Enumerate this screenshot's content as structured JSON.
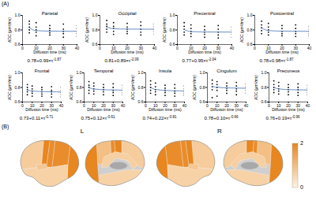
{
  "panel_labels": [
    "(A)",
    "(B)"
  ],
  "chart_data": [
    {
      "type": "scatter",
      "title": "Parietal",
      "xlabel": "Diffusion time (ms)",
      "ylabel": "ADC (μm²/ms)",
      "xlim": [
        0,
        40
      ],
      "xticks": [
        0,
        10,
        20,
        30,
        40
      ],
      "ylim": [
        0.6,
        1.0
      ],
      "yticks": [
        0.6,
        0.8,
        {
          "value": 1.0,
          "label": "1.0"
        }
      ],
      "x": [
        5,
        10,
        20,
        30,
        40
      ],
      "y_points": [
        [
          0.92,
          0.88,
          0.84,
          0.8,
          0.76
        ],
        [
          0.9,
          0.84,
          0.8,
          0.77,
          0.72
        ],
        [
          0.86,
          0.82,
          0.79,
          0.76,
          0.73
        ],
        [
          0.88,
          0.81,
          0.78,
          0.75,
          0.7
        ],
        [
          0.86,
          0.82,
          0.78,
          0.75,
          0.71
        ]
      ],
      "fit": {
        "color": "#3f6fb5",
        "x": [
          5,
          7.5,
          10,
          15,
          20,
          30,
          40
        ],
        "y": [
          0.829,
          0.803,
          0.793,
          0.786,
          0.784,
          0.782,
          0.781
        ]
      },
      "equation": "0.78+0.99×τ",
      "exponent": "-1.87"
    },
    {
      "type": "scatter",
      "title": "Occipital",
      "xlabel": "Diffusion time (ms)",
      "ylabel": "ADC (μm²/ms)",
      "xlim": [
        0,
        40
      ],
      "xticks": [
        0,
        10,
        20,
        30,
        40
      ],
      "ylim": [
        0.6,
        1.0
      ],
      "yticks": [
        0.6,
        0.8,
        {
          "value": 1.0,
          "label": "1.0"
        }
      ],
      "x": [
        5,
        10,
        20,
        30,
        40
      ],
      "y_points": [
        [
          0.93,
          0.88,
          0.85,
          0.81,
          0.77
        ],
        [
          0.9,
          0.85,
          0.82,
          0.78,
          0.74
        ],
        [
          0.89,
          0.84,
          0.81,
          0.78,
          0.75
        ],
        [
          0.91,
          0.86,
          0.81,
          0.77,
          0.73
        ],
        [
          0.88,
          0.84,
          0.81,
          0.78,
          0.74
        ]
      ],
      "fit": {
        "color": "#3f6fb5",
        "x": [
          5,
          7.5,
          10,
          15,
          20,
          30,
          40
        ],
        "y": [
          0.841,
          0.823,
          0.817,
          0.813,
          0.812,
          0.811,
          0.81
        ]
      },
      "equation": "0.81+0.89×τ",
      "exponent": "-2.09"
    },
    {
      "type": "scatter",
      "title": "Precentral",
      "xlabel": "Diffusion time (ms)",
      "ylabel": "ADC (μm²/ms)",
      "xlim": [
        0,
        40
      ],
      "xticks": [
        0,
        10,
        20,
        30,
        40
      ],
      "ylim": [
        0.6,
        1.0
      ],
      "yticks": [
        0.6,
        0.8,
        {
          "value": 1.0,
          "label": "1.0"
        }
      ],
      "x": [
        5,
        10,
        20,
        30,
        40
      ],
      "y_points": [
        [
          0.9,
          0.85,
          0.81,
          0.77,
          0.73
        ],
        [
          0.87,
          0.82,
          0.78,
          0.75,
          0.71
        ],
        [
          0.85,
          0.8,
          0.77,
          0.74,
          0.7
        ],
        [
          0.86,
          0.81,
          0.77,
          0.73,
          0.69
        ],
        [
          0.84,
          0.8,
          0.77,
          0.74,
          0.7
        ]
      ],
      "fit": {
        "color": "#3f6fb5",
        "x": [
          5,
          7.5,
          10,
          15,
          20,
          30,
          40
        ],
        "y": [
          0.806,
          0.786,
          0.779,
          0.774,
          0.772,
          0.771,
          0.77
        ]
      },
      "equation": "0.77+0.95×τ",
      "exponent": "-2.04"
    },
    {
      "type": "scatter",
      "title": "Postcentral",
      "xlabel": "Diffusion time (ms)",
      "ylabel": "ADC (μm²/ms)",
      "xlim": [
        0,
        40
      ],
      "xticks": [
        0,
        10,
        20,
        30,
        40
      ],
      "ylim": [
        0.6,
        1.0
      ],
      "yticks": [
        0.6,
        0.8,
        {
          "value": 1.0,
          "label": "1.0"
        }
      ],
      "x": [
        5,
        10,
        20,
        30,
        40
      ],
      "y_points": [
        [
          0.92,
          0.87,
          0.83,
          0.79,
          0.75
        ],
        [
          0.89,
          0.84,
          0.8,
          0.77,
          0.73
        ],
        [
          0.86,
          0.82,
          0.78,
          0.75,
          0.72
        ],
        [
          0.87,
          0.82,
          0.78,
          0.75,
          0.71
        ],
        [
          0.85,
          0.81,
          0.78,
          0.75,
          0.72
        ]
      ],
      "fit": {
        "color": "#3f6fb5",
        "x": [
          5,
          7.5,
          10,
          15,
          20,
          30,
          40
        ],
        "y": [
          0.828,
          0.803,
          0.793,
          0.786,
          0.784,
          0.782,
          0.781
        ]
      },
      "equation": "0.78+0.98×τ",
      "exponent": "-1.87"
    },
    {
      "type": "scatter",
      "title": "Frontal",
      "xlabel": "Diffusion time (ms)",
      "ylabel": "ADC (μm²/ms)",
      "xlim": [
        0,
        40
      ],
      "xticks": [
        0,
        10,
        20,
        30,
        40
      ],
      "ylim": [
        0.6,
        1.0
      ],
      "yticks": [
        0.6,
        0.8,
        {
          "value": 1.0,
          "label": "1.0"
        }
      ],
      "x": [
        5,
        10,
        20,
        30,
        40
      ],
      "y_points": [
        [
          0.84,
          0.8,
          0.77,
          0.74,
          0.7
        ],
        [
          0.82,
          0.78,
          0.75,
          0.72,
          0.68
        ],
        [
          0.8,
          0.77,
          0.74,
          0.71,
          0.68
        ],
        [
          0.81,
          0.76,
          0.74,
          0.71,
          0.67
        ],
        [
          0.8,
          0.76,
          0.73,
          0.7,
          0.67
        ]
      ],
      "fit": {
        "color": "#3f6fb5",
        "x": [
          5,
          7.5,
          10,
          15,
          20,
          30,
          40
        ],
        "y": [
          0.765,
          0.756,
          0.751,
          0.746,
          0.743,
          0.74,
          0.738
        ]
      },
      "equation": "0.73+0.11×τ",
      "exponent": "-0.71"
    },
    {
      "type": "scatter",
      "title": "Temporal",
      "xlabel": "Diffusion time (ms)",
      "ylabel": "ADC (μm²/ms)",
      "xlim": [
        0,
        40
      ],
      "xticks": [
        0,
        10,
        20,
        30,
        40
      ],
      "ylim": [
        0.6,
        1.0
      ],
      "yticks": [
        0.6,
        0.8,
        {
          "value": 1.0,
          "label": "1.0"
        }
      ],
      "x": [
        5,
        10,
        20,
        30,
        40
      ],
      "y_points": [
        [
          0.88,
          0.83,
          0.8,
          0.76,
          0.72
        ],
        [
          0.86,
          0.82,
          0.78,
          0.75,
          0.71
        ],
        [
          0.84,
          0.8,
          0.77,
          0.74,
          0.7
        ],
        [
          0.85,
          0.8,
          0.76,
          0.73,
          0.69
        ],
        [
          0.83,
          0.79,
          0.76,
          0.73,
          0.7
        ]
      ],
      "fit": {
        "color": "#3f6fb5",
        "x": [
          5,
          7.5,
          10,
          15,
          20,
          30,
          40
        ],
        "y": [
          0.795,
          0.785,
          0.779,
          0.773,
          0.769,
          0.765,
          0.763
        ]
      },
      "equation": "0.75+0.12×τ",
      "exponent": "-0.61"
    },
    {
      "type": "scatter",
      "title": "Insula",
      "xlabel": "Diffusion time (ms)",
      "ylabel": "ADC (μm²/ms)",
      "xlim": [
        0,
        40
      ],
      "xticks": [
        0,
        10,
        20,
        30,
        40
      ],
      "ylim": [
        0.6,
        1.0
      ],
      "yticks": [
        0.6,
        0.8,
        {
          "value": 1.0,
          "label": "1.0"
        }
      ],
      "x": [
        5,
        10,
        20,
        30,
        40
      ],
      "y_points": [
        [
          0.89,
          0.84,
          0.8,
          0.76,
          0.72
        ],
        [
          0.86,
          0.81,
          0.77,
          0.74,
          0.7
        ],
        [
          0.83,
          0.79,
          0.76,
          0.73,
          0.69
        ],
        [
          0.84,
          0.79,
          0.75,
          0.72,
          0.68
        ],
        [
          0.82,
          0.78,
          0.75,
          0.72,
          0.69
        ]
      ],
      "fit": {
        "color": "#3f6fb5",
        "x": [
          5,
          7.5,
          10,
          15,
          20,
          30,
          40
        ],
        "y": [
          0.8,
          0.783,
          0.774,
          0.765,
          0.759,
          0.754,
          0.751
        ]
      },
      "equation": "0.74+0.22×τ",
      "exponent": "-0.81"
    },
    {
      "type": "scatter",
      "title": "Cingulum",
      "xlabel": "Diffusion time (ms)",
      "ylabel": "ADC (μm²/ms)",
      "xlim": [
        0,
        40
      ],
      "xticks": [
        0,
        10,
        20,
        30,
        40
      ],
      "ylim": [
        0.6,
        1.0
      ],
      "yticks": [
        0.6,
        0.8,
        {
          "value": 1.0,
          "label": "1.0"
        }
      ],
      "x": [
        5,
        10,
        20,
        30,
        40
      ],
      "y_points": [
        [
          0.9,
          0.85,
          0.81,
          0.77,
          0.66
        ],
        [
          0.88,
          0.84,
          0.8,
          0.76,
          0.68
        ],
        [
          0.86,
          0.82,
          0.79,
          0.76,
          0.72
        ],
        [
          0.87,
          0.82,
          0.78,
          0.75,
          0.7
        ],
        [
          0.85,
          0.81,
          0.79,
          0.76,
          0.72
        ]
      ],
      "fit": {
        "color": "#3f6fb5",
        "x": [
          5,
          7.5,
          10,
          15,
          20,
          30,
          40
        ],
        "y": [
          0.815,
          0.806,
          0.802,
          0.797,
          0.794,
          0.791,
          0.789
        ]
      },
      "equation": "0.78+0.10×τ",
      "exponent": "-0.66"
    },
    {
      "type": "scatter",
      "title": "Precuneus",
      "xlabel": "Diffusion time (ms)",
      "ylabel": "ADC (μm²/ms)",
      "xlim": [
        0,
        40
      ],
      "xticks": [
        0,
        10,
        20,
        30,
        40
      ],
      "ylim": [
        0.6,
        1.0
      ],
      "yticks": [
        0.6,
        0.8,
        {
          "value": 1.0,
          "label": "1.0"
        }
      ],
      "x": [
        5,
        10,
        20,
        30,
        40
      ],
      "y_points": [
        [
          0.89,
          0.84,
          0.8,
          0.77,
          0.73
        ],
        [
          0.87,
          0.82,
          0.78,
          0.75,
          0.71
        ],
        [
          0.84,
          0.8,
          0.77,
          0.74,
          0.7
        ],
        [
          0.85,
          0.8,
          0.77,
          0.73,
          0.69
        ],
        [
          0.83,
          0.79,
          0.76,
          0.73,
          0.7
        ]
      ],
      "fit": {
        "color": "#3f6fb5",
        "x": [
          5,
          7.5,
          10,
          15,
          20,
          30,
          40
        ],
        "y": [
          0.8,
          0.788,
          0.781,
          0.774,
          0.771,
          0.767,
          0.766
        ]
      },
      "equation": "0.76+0.19×τ",
      "exponent": "-0.96"
    }
  ],
  "brain_map": {
    "hemisphere_labels": [
      "L",
      "R"
    ],
    "regions": {
      "Parietal": 1.87,
      "Occipital": 2.09,
      "Precentral": 2.04,
      "Postcentral": 1.87,
      "Frontal": 0.71,
      "Temporal": 0.61,
      "Insula": 0.81,
      "Cingulum": 0.66,
      "Precuneus": 0.96
    },
    "colorbar": {
      "range": [
        0,
        2
      ],
      "ticks": [
        0,
        2
      ],
      "colors": [
        "#fdf3e3",
        "#e8861f"
      ]
    }
  }
}
